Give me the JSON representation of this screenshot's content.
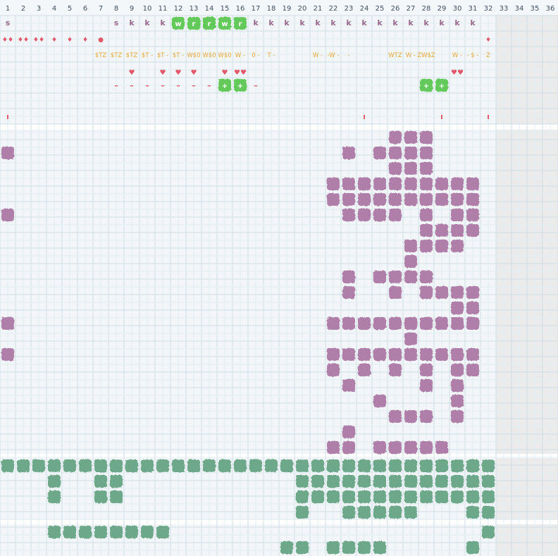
{
  "columns": [
    "1",
    "2",
    "3",
    "4",
    "5",
    "6",
    "7",
    "8",
    "9",
    "10",
    "11",
    "12",
    "13",
    "14",
    "15",
    "16",
    "17",
    "18",
    "19",
    "20",
    "21",
    "22",
    "23",
    "24",
    "25",
    "26",
    "27",
    "28",
    "29",
    "30",
    "31",
    "32",
    "33",
    "34",
    "35",
    "36"
  ],
  "colors": {
    "purple": "#b07fa9",
    "green_dark": "#6ca889",
    "green_bright": "#62c95a",
    "orange": "#e9a83a",
    "red": "#e2576a",
    "kletter": "#9a6b8c",
    "grid_line": "#d6e4ea",
    "bg": "#f2f6f8",
    "shade": "#ebebeb"
  },
  "legend": {
    "row_letters": [
      {
        "col": 1,
        "text": "s"
      },
      {
        "col": 8,
        "text": "s"
      },
      {
        "col": 9,
        "text": "k"
      },
      {
        "col": 10,
        "text": "k"
      },
      {
        "col": 11,
        "text": "k"
      },
      {
        "col": 17,
        "text": "k"
      },
      {
        "col": 18,
        "text": "k"
      },
      {
        "col": 19,
        "text": "k"
      },
      {
        "col": 20,
        "text": "k"
      },
      {
        "col": 21,
        "text": "k"
      },
      {
        "col": 22,
        "text": "k"
      },
      {
        "col": 23,
        "text": "k"
      },
      {
        "col": 24,
        "text": "k"
      },
      {
        "col": 25,
        "text": "k"
      },
      {
        "col": 26,
        "text": "k"
      },
      {
        "col": 27,
        "text": "k"
      },
      {
        "col": 28,
        "text": "k"
      },
      {
        "col": 29,
        "text": "k"
      },
      {
        "col": 30,
        "text": "k"
      },
      {
        "col": 31,
        "text": "k"
      }
    ],
    "green_letter_blocks": [
      {
        "col": 12,
        "text": "w"
      },
      {
        "col": 13,
        "text": "r"
      },
      {
        "col": 14,
        "text": "r"
      },
      {
        "col": 15,
        "text": "w"
      },
      {
        "col": 16,
        "text": "r"
      }
    ],
    "drop_icons": [
      {
        "col": 1,
        "text": "♦♦"
      },
      {
        "col": 2,
        "text": "♦♦"
      },
      {
        "col": 3,
        "text": "♦♦"
      },
      {
        "col": 4,
        "text": "♦"
      },
      {
        "col": 5,
        "text": "♦"
      },
      {
        "col": 6,
        "text": "♦"
      },
      {
        "col": 7,
        "text": "●"
      },
      {
        "col": 32,
        "text": "♦"
      }
    ],
    "orange_tags": [
      {
        "col": 7,
        "text": "$TZ"
      },
      {
        "col": 8,
        "text": "$TZ"
      },
      {
        "col": 9,
        "text": "$TZ"
      },
      {
        "col": 10,
        "text": "$T -"
      },
      {
        "col": 11,
        "text": "$T -"
      },
      {
        "col": 12,
        "text": "$T -"
      },
      {
        "col": 13,
        "text": "W$0"
      },
      {
        "col": 14,
        "text": "W$0"
      },
      {
        "col": 15,
        "text": "W$0"
      },
      {
        "col": 16,
        "text": "W -"
      },
      {
        "col": 17,
        "text": "0 -"
      },
      {
        "col": 18,
        "text": "T -"
      },
      {
        "col": 21,
        "text": "W -"
      },
      {
        "col": 22,
        "text": "-W -"
      },
      {
        "col": 23,
        "text": "-"
      },
      {
        "col": 26,
        "text": "WTZ"
      },
      {
        "col": 27,
        "text": "W -"
      },
      {
        "col": 28,
        "text": "ZW$Z"
      },
      {
        "col": 30,
        "text": "W -"
      },
      {
        "col": 31,
        "text": "- $ -"
      },
      {
        "col": 32,
        "text": "Z"
      }
    ],
    "hearts": [
      {
        "col": 9,
        "text": "♥"
      },
      {
        "col": 11,
        "text": "♥"
      },
      {
        "col": 12,
        "text": "♥"
      },
      {
        "col": 13,
        "text": "♥"
      },
      {
        "col": 15,
        "text": "♥"
      },
      {
        "col": 16,
        "text": "♥♥"
      },
      {
        "col": 30,
        "text": "♥♥"
      }
    ],
    "dashes": [
      {
        "col": 8,
        "text": "–"
      },
      {
        "col": 9,
        "text": "–"
      },
      {
        "col": 10,
        "text": "–"
      },
      {
        "col": 11,
        "text": "–"
      },
      {
        "col": 12,
        "text": "–"
      },
      {
        "col": 13,
        "text": "–"
      },
      {
        "col": 14,
        "text": "–"
      },
      {
        "col": 17,
        "text": "–"
      }
    ],
    "plus_blocks": [
      {
        "col": 15,
        "text": "+"
      },
      {
        "col": 16,
        "text": "+"
      },
      {
        "col": 28,
        "text": "+"
      },
      {
        "col": 29,
        "text": "+"
      }
    ],
    "ticks": [
      {
        "col": 1,
        "text": "ı"
      },
      {
        "col": 24,
        "text": "ı"
      },
      {
        "col": 29,
        "text": "ı"
      },
      {
        "col": 32,
        "text": "ı"
      }
    ]
  },
  "purple_section": {
    "rows": [
      [
        26,
        27,
        28
      ],
      [
        1,
        23,
        25,
        26,
        27,
        28
      ],
      [
        26,
        27,
        28
      ],
      [
        22,
        23,
        24,
        25,
        26,
        27,
        28,
        29,
        30,
        31
      ],
      [
        22,
        23,
        24,
        25,
        26,
        27,
        28,
        29,
        30,
        31
      ],
      [
        1,
        23,
        24,
        25,
        26,
        28,
        30,
        31
      ],
      [
        28,
        29,
        30,
        31
      ],
      [
        27,
        28,
        29,
        30
      ],
      [
        27
      ],
      [
        23,
        25,
        26,
        27,
        28
      ],
      [
        23,
        26,
        28,
        29,
        30,
        31
      ],
      [
        30,
        31
      ],
      [
        1,
        22,
        23,
        24,
        25,
        26,
        27,
        28,
        29,
        30,
        31
      ],
      [
        27
      ],
      [
        1,
        22,
        23,
        24,
        25,
        26,
        27,
        28,
        29,
        30,
        31
      ],
      [
        22,
        24,
        26,
        28,
        30,
        31
      ],
      [
        23,
        28,
        30
      ],
      [
        25,
        30
      ],
      [
        26,
        27,
        28,
        30
      ],
      [
        23
      ],
      [
        22,
        23,
        25,
        26,
        27,
        28,
        29
      ]
    ]
  },
  "green_section_a": {
    "rows": [
      [
        1,
        2,
        3,
        4,
        5,
        6,
        7,
        8,
        9,
        10,
        11,
        12,
        13,
        14,
        15,
        16,
        17,
        18,
        19,
        20,
        21,
        22,
        23,
        24,
        25,
        26,
        27,
        28,
        29,
        30,
        31,
        32
      ],
      [
        4,
        7,
        8,
        20,
        21,
        22,
        23,
        24,
        25,
        26,
        27,
        28,
        29,
        30,
        31,
        32
      ],
      [
        4,
        7,
        8,
        20,
        21,
        22,
        23,
        24,
        25,
        26,
        27,
        28,
        29,
        30,
        31,
        32
      ],
      [
        20,
        23,
        24,
        25,
        26,
        27,
        31,
        32
      ]
    ]
  },
  "green_section_b": {
    "rows": [
      [
        4,
        5,
        6,
        7,
        8,
        9,
        10,
        11,
        32
      ],
      [
        19,
        20,
        22,
        23,
        24,
        25,
        31
      ]
    ]
  }
}
